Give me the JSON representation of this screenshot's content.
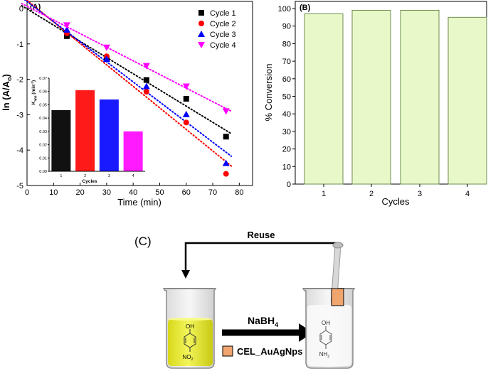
{
  "panel_a": {
    "label": "(A)",
    "chart_data": {
      "type": "scatter",
      "title": "",
      "xlabel": "Time (min)",
      "ylabel": "ln (A/A",
      "ylabel_sub": "o",
      "ylabel_close": ")",
      "xlim": [
        0,
        85
      ],
      "ylim": [
        -5,
        0.2
      ],
      "xticks": [
        "0",
        "10",
        "20",
        "30",
        "40",
        "50",
        "60",
        "70",
        "80"
      ],
      "yticks": [
        "0",
        "-1",
        "-2",
        "-3",
        "-4",
        "-5"
      ],
      "x": [
        0,
        15,
        30,
        45,
        60,
        75
      ],
      "series": [
        {
          "name": "Cycle 1",
          "color": "#000000",
          "marker": "square",
          "values": [
            0,
            -0.78,
            -1.4,
            -2.02,
            -2.55,
            -3.62
          ]
        },
        {
          "name": "Cycle 2",
          "color": "#ff0000",
          "marker": "circle",
          "values": [
            0,
            -0.7,
            -1.35,
            -2.35,
            -3.22,
            -4.67
          ]
        },
        {
          "name": "Cycle 3",
          "color": "#0000ff",
          "marker": "triangle-up",
          "values": [
            0,
            -0.6,
            -1.43,
            -2.2,
            -2.99,
            -4.37
          ]
        },
        {
          "name": "Cycle 4",
          "color": "#ff00ff",
          "marker": "triangle-down",
          "values": [
            0,
            -0.47,
            -1.1,
            -1.62,
            -2.2,
            -2.9
          ]
        }
      ]
    },
    "inset": {
      "chart_data": {
        "type": "bar",
        "categories": [
          "1",
          "2",
          "3",
          "4"
        ],
        "values": [
          0.046,
          0.061,
          0.054,
          0.03
        ],
        "colors": [
          "#111111",
          "#ff1a1a",
          "#1a1aff",
          "#ff1aff"
        ],
        "xlabel": "Cycles",
        "ylabel": "K",
        "ylabel_sub": "app",
        "ylabel_unit": " (min",
        "ylabel_sup": "-1",
        "ylabel_close": ")",
        "ylim": [
          0,
          0.07
        ],
        "yticks": [
          "0.00",
          "0.01",
          "0.02",
          "0.03",
          "0.04",
          "0.05",
          "0.06",
          "0.07"
        ]
      }
    }
  },
  "panel_b": {
    "label": "(B)",
    "chart_data": {
      "type": "bar",
      "title": "",
      "categories": [
        "1",
        "2",
        "3",
        "4"
      ],
      "values": [
        97,
        99,
        99,
        95
      ],
      "color": "#e8f8c9",
      "edge_color": "#6e8d4f",
      "xlabel": "Cycles",
      "ylabel": "% Conversion",
      "ylim": [
        0,
        100
      ],
      "yticks": [
        "0",
        "10",
        "20",
        "30",
        "40",
        "50",
        "60",
        "70",
        "80",
        "90",
        "100"
      ]
    }
  },
  "panel_c": {
    "label": "(C)",
    "reuse_label": "Reuse",
    "reagent": "NaBH",
    "reagent_sub": "4",
    "legend_label": "CEL_AuAgNps",
    "legend_color": "#f0a56f",
    "reactant_top": "OH",
    "reactant_bottom": "NO",
    "reactant_bottom_sub": "2",
    "product_top": "OH",
    "product_bottom": "NH",
    "product_bottom_sub": "2",
    "solution_color": "#eef03c"
  }
}
